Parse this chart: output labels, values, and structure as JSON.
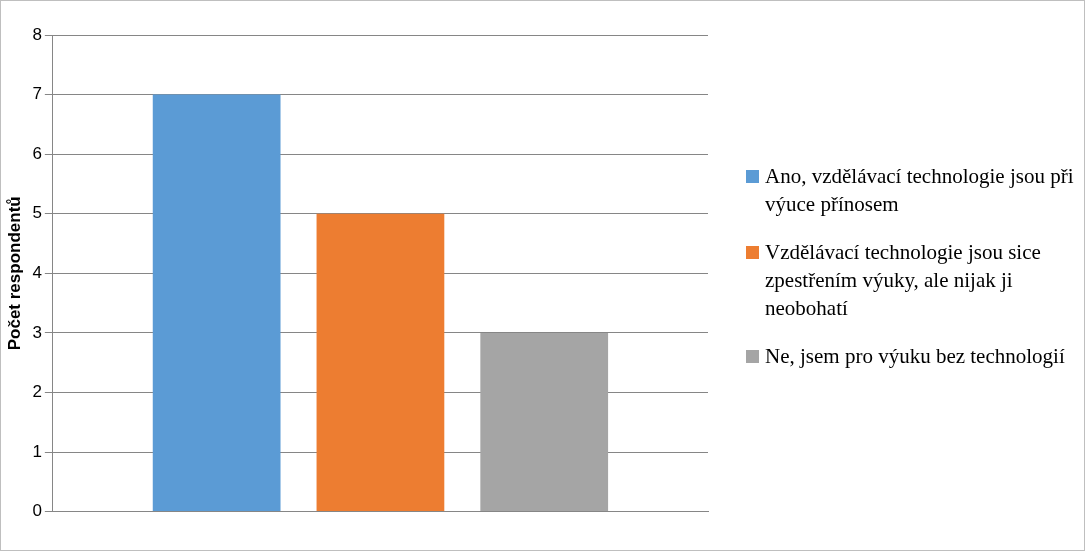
{
  "chart_data": {
    "type": "bar",
    "ylabel": "Počet respondentů",
    "categories": [
      null
    ],
    "series": [
      {
        "name": "Ano, vzdělávací technologie jsou při výuce přínosem",
        "color": "#5b9bd5",
        "values": [
          7
        ]
      },
      {
        "name": "Vzdělávací technologie jsou sice zpestřením výuky, ale nijak ji neobohatí",
        "color": "#ed7d31",
        "values": [
          5
        ]
      },
      {
        "name": "Ne, jsem pro výuku bez technologií",
        "color": "#a5a5a5",
        "values": [
          3
        ]
      }
    ],
    "ylim": [
      0,
      8
    ],
    "yticks": [
      0,
      1,
      2,
      3,
      4,
      5,
      6,
      7,
      8
    ],
    "grid": "y",
    "legend": "right"
  }
}
